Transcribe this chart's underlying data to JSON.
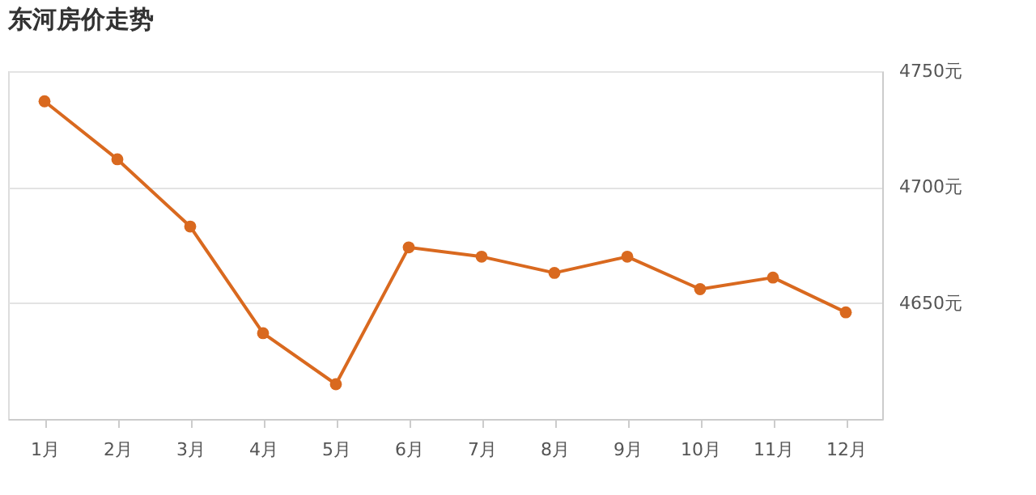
{
  "chart_data": {
    "type": "line",
    "title": "东河房价走势",
    "categories": [
      "1月",
      "2月",
      "3月",
      "4月",
      "5月",
      "6月",
      "7月",
      "8月",
      "9月",
      "10月",
      "11月",
      "12月"
    ],
    "series": [
      {
        "color": "#d9691f",
        "values": [
          4737,
          4712,
          4683,
          4637,
          4615,
          4674,
          4670,
          4663,
          4670,
          4656,
          4661,
          4646
        ]
      }
    ],
    "ylim": [
      4600,
      4750
    ],
    "yticks": [
      {
        "value": 4650,
        "label": "4650元"
      },
      {
        "value": 4700,
        "label": "4700元"
      },
      {
        "value": 4750,
        "label": "4750元"
      }
    ],
    "grid": "y",
    "marker": "circle",
    "line_style": "solid"
  }
}
